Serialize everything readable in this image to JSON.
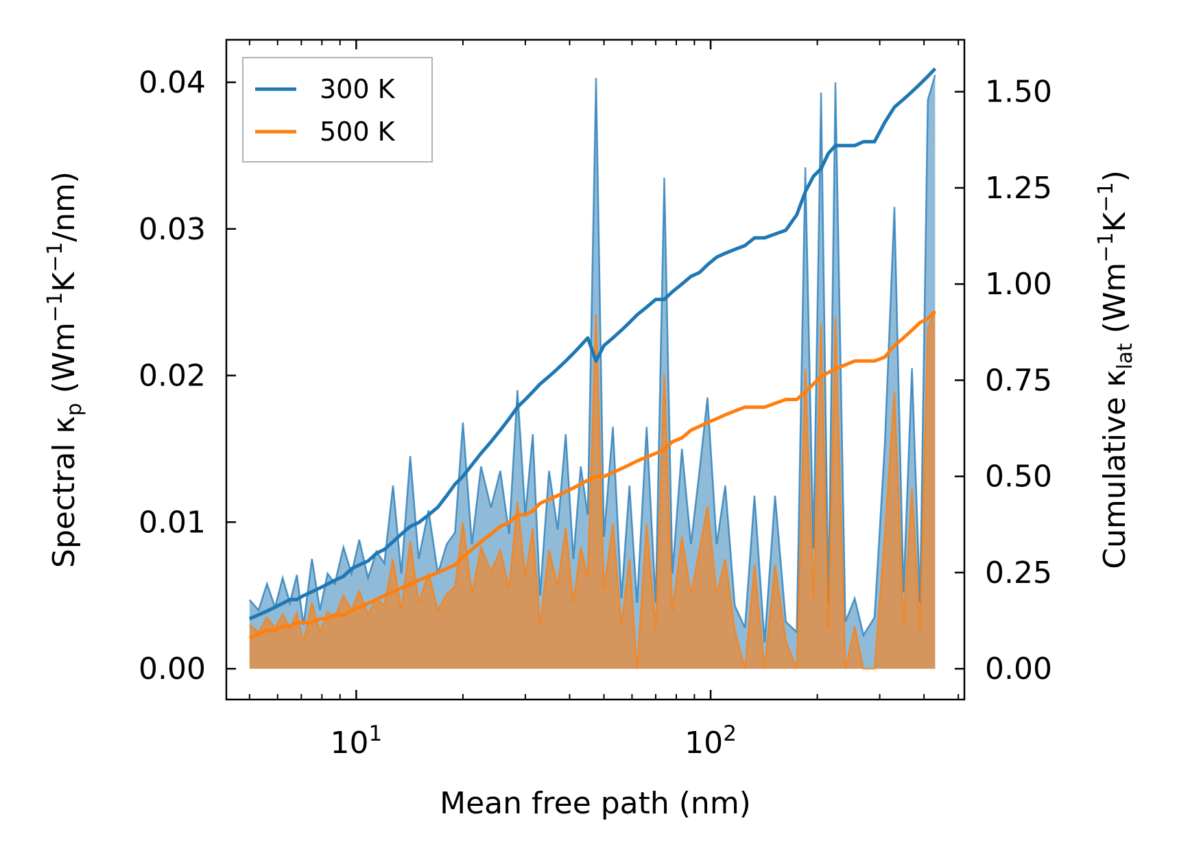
{
  "chart_data": {
    "type": "line",
    "title": "",
    "x_scale": "log",
    "xlabel": "Mean free path (nm)",
    "xlim": [
      4.3,
      520
    ],
    "x_ticks": [
      {
        "value": 10,
        "base": "10",
        "exp": "1"
      },
      {
        "value": 100,
        "base": "10",
        "exp": "2"
      }
    ],
    "ylabel_left": {
      "pre": "Spectral κ",
      "sub": "p",
      "post": " (Wm",
      "sup1": "−1",
      "mid": "K",
      "sup2": "−1",
      "end": "/nm)"
    },
    "ylim_left": [
      -0.0021,
      0.0429
    ],
    "y_ticks_left": [
      "0.00",
      "0.01",
      "0.02",
      "0.03",
      "0.04"
    ],
    "y_tick_values_left": [
      0.0,
      0.01,
      0.02,
      0.03,
      0.04
    ],
    "ylabel_right": {
      "pre": "Cumulative κ",
      "sub": "lat",
      "post": " (Wm",
      "sup1": "−1",
      "mid": "K",
      "sup2": "−1",
      "end": ")"
    },
    "ylim_right": [
      -0.08,
      1.635
    ],
    "y_ticks_right": [
      "0.00",
      "0.25",
      "0.50",
      "0.75",
      "1.00",
      "1.25",
      "1.50"
    ],
    "y_tick_values_right": [
      0.0,
      0.25,
      0.5,
      0.75,
      1.0,
      1.25,
      1.5
    ],
    "legend": {
      "position": "top-left",
      "entries": [
        "300 K",
        "500 K"
      ]
    },
    "colors": {
      "300 K": "#1f77b4",
      "500 K": "#ff7f0e"
    },
    "x": [
      5,
      5.3,
      5.6,
      5.9,
      6.2,
      6.5,
      6.8,
      7.1,
      7.5,
      7.9,
      8.3,
      8.7,
      9.2,
      9.7,
      10.2,
      10.8,
      11.4,
      12,
      12.7,
      13.4,
      14.2,
      15,
      16,
      17,
      18,
      19,
      20,
      21.2,
      22.5,
      24,
      25.5,
      27,
      28.5,
      30,
      31.5,
      33,
      35,
      37,
      39,
      41,
      43,
      45,
      47.5,
      50,
      53,
      56,
      59,
      62,
      66,
      70,
      74,
      78,
      83,
      88,
      93,
      98,
      104,
      110,
      117,
      125,
      133,
      142,
      152,
      163,
      175,
      185,
      195,
      205,
      215,
      225,
      240,
      255,
      270,
      290,
      310,
      330,
      350,
      370,
      390,
      410,
      430
    ],
    "series": [
      {
        "name": "300 K",
        "spectral": [
          0.0047,
          0.004,
          0.0058,
          0.0042,
          0.0062,
          0.0045,
          0.0064,
          0.003,
          0.0075,
          0.004,
          0.0065,
          0.0058,
          0.0083,
          0.0065,
          0.0088,
          0.0062,
          0.008,
          0.0072,
          0.0125,
          0.0065,
          0.0145,
          0.0075,
          0.0108,
          0.0065,
          0.0085,
          0.0093,
          0.0168,
          0.0085,
          0.0138,
          0.011,
          0.0135,
          0.0092,
          0.019,
          0.0105,
          0.016,
          0.005,
          0.0135,
          0.0095,
          0.016,
          0.0075,
          0.0138,
          0.0105,
          0.0403,
          0.009,
          0.0165,
          0.0048,
          0.0125,
          0.0045,
          0.0165,
          0.0045,
          0.0335,
          0.0065,
          0.015,
          0.0085,
          0.0135,
          0.0185,
          0.0085,
          0.0125,
          0.0043,
          0.0028,
          0.0118,
          0.0018,
          0.0118,
          0.0032,
          0.0025,
          0.0342,
          0.0082,
          0.0393,
          0.0045,
          0.04,
          0.0032,
          0.0048,
          0.0023,
          0.0035,
          0.0152,
          0.0315,
          0.0052,
          0.0205,
          0.0045,
          0.0388,
          0.0405
        ],
        "cumulative": [
          0.13,
          0.14,
          0.15,
          0.16,
          0.17,
          0.18,
          0.18,
          0.19,
          0.2,
          0.21,
          0.22,
          0.23,
          0.24,
          0.26,
          0.27,
          0.28,
          0.3,
          0.31,
          0.33,
          0.35,
          0.37,
          0.38,
          0.4,
          0.42,
          0.45,
          0.48,
          0.5,
          0.53,
          0.56,
          0.59,
          0.62,
          0.65,
          0.68,
          0.7,
          0.72,
          0.74,
          0.76,
          0.78,
          0.8,
          0.82,
          0.84,
          0.86,
          0.8,
          0.84,
          0.86,
          0.88,
          0.9,
          0.92,
          0.94,
          0.96,
          0.96,
          0.98,
          1.0,
          1.02,
          1.03,
          1.05,
          1.07,
          1.08,
          1.09,
          1.1,
          1.12,
          1.12,
          1.13,
          1.14,
          1.18,
          1.24,
          1.28,
          1.3,
          1.34,
          1.36,
          1.36,
          1.36,
          1.37,
          1.37,
          1.42,
          1.46,
          1.48,
          1.5,
          1.52,
          1.54,
          1.56
        ]
      },
      {
        "name": "500 K",
        "spectral": [
          0.003,
          0.0025,
          0.0035,
          0.0028,
          0.0037,
          0.0028,
          0.0038,
          0.0018,
          0.0045,
          0.0025,
          0.0039,
          0.0035,
          0.005,
          0.004,
          0.0053,
          0.0037,
          0.0048,
          0.0043,
          0.0075,
          0.004,
          0.0087,
          0.0045,
          0.0065,
          0.004,
          0.0051,
          0.0056,
          0.01,
          0.0051,
          0.0083,
          0.0066,
          0.0081,
          0.0055,
          0.0114,
          0.0063,
          0.0096,
          0.003,
          0.0081,
          0.0057,
          0.0096,
          0.0045,
          0.0083,
          0.0063,
          0.0242,
          0.0054,
          0.0099,
          0.0029,
          0.0075,
          0.0,
          0.0099,
          0.0027,
          0.0201,
          0.0039,
          0.009,
          0.0051,
          0.0081,
          0.0111,
          0.0051,
          0.0075,
          0.0026,
          0.0,
          0.0071,
          0.0,
          0.0071,
          0.0019,
          0.0,
          0.0205,
          0.0049,
          0.0236,
          0.0027,
          0.024,
          0.0,
          0.0029,
          0.0,
          0.0,
          0.0091,
          0.0189,
          0.0031,
          0.0123,
          0.0027,
          0.0233,
          0.0243
        ],
        "cumulative": [
          0.08,
          0.09,
          0.1,
          0.1,
          0.11,
          0.11,
          0.12,
          0.12,
          0.12,
          0.13,
          0.13,
          0.14,
          0.14,
          0.15,
          0.16,
          0.17,
          0.18,
          0.19,
          0.2,
          0.21,
          0.22,
          0.23,
          0.24,
          0.25,
          0.26,
          0.27,
          0.29,
          0.31,
          0.33,
          0.35,
          0.37,
          0.38,
          0.4,
          0.4,
          0.41,
          0.43,
          0.44,
          0.45,
          0.46,
          0.47,
          0.48,
          0.49,
          0.5,
          0.5,
          0.51,
          0.52,
          0.53,
          0.54,
          0.55,
          0.56,
          0.57,
          0.59,
          0.6,
          0.62,
          0.63,
          0.64,
          0.65,
          0.66,
          0.67,
          0.68,
          0.68,
          0.68,
          0.69,
          0.7,
          0.7,
          0.72,
          0.74,
          0.76,
          0.77,
          0.78,
          0.79,
          0.8,
          0.8,
          0.8,
          0.81,
          0.84,
          0.86,
          0.88,
          0.9,
          0.91,
          0.93
        ]
      }
    ]
  }
}
